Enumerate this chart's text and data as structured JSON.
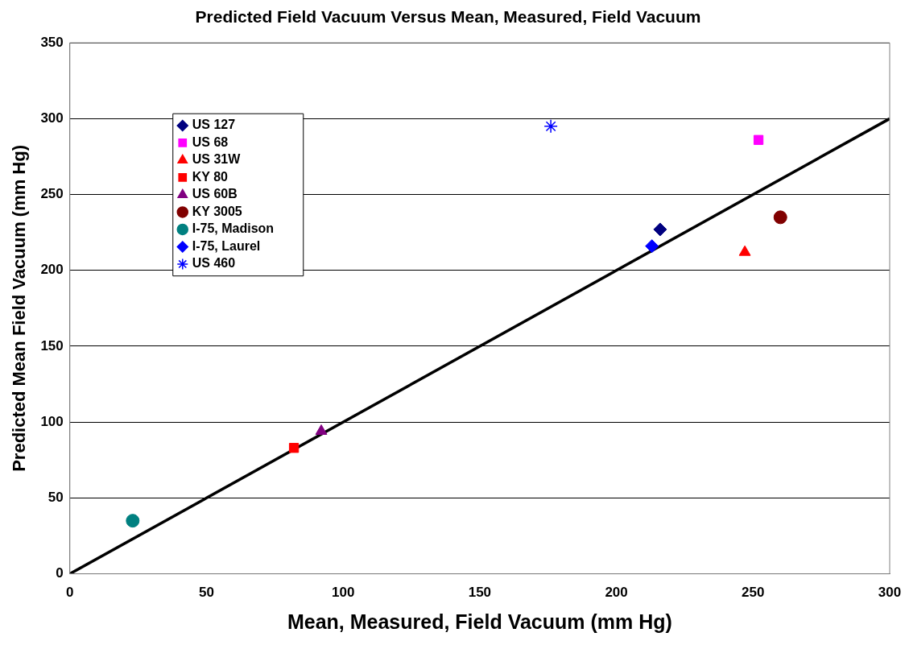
{
  "chart_data": {
    "type": "scatter",
    "title": "Predicted Field Vacuum Versus Mean, Measured, Field Vacuum",
    "xlabel": "Mean, Measured, Field Vacuum (mm Hg)",
    "ylabel": "Predicted Mean Field Vacuum (mm Hg)",
    "xlim": [
      0,
      300
    ],
    "xticks": [
      0,
      50,
      100,
      150,
      200,
      250,
      300
    ],
    "ylim": [
      0,
      350
    ],
    "yticks": [
      0,
      50,
      100,
      150,
      200,
      250,
      300,
      350
    ],
    "grid": "y",
    "legend": "top left",
    "series": [
      {
        "name": "US 127",
        "color": "#000080",
        "marker": "diamond",
        "x": [
          216
        ],
        "values": [
          227
        ]
      },
      {
        "name": "US 68",
        "color": "#ff00ff",
        "marker": "square",
        "x": [
          252
        ],
        "values": [
          286
        ]
      },
      {
        "name": "US 31W",
        "color": "#ff0000",
        "marker": "triangle",
        "x": [
          247
        ],
        "values": [
          212
        ]
      },
      {
        "name": "KY 80",
        "color": "#ff0000",
        "marker": "square",
        "x": [
          82
        ],
        "values": [
          83
        ]
      },
      {
        "name": "US 60B",
        "color": "#800080",
        "marker": "triangle",
        "x": [
          92
        ],
        "values": [
          94
        ]
      },
      {
        "name": "KY 3005",
        "color": "#800000",
        "marker": "circle",
        "x": [
          260
        ],
        "values": [
          235
        ]
      },
      {
        "name": "I-75, Madison",
        "color": "#008080",
        "marker": "circle",
        "x": [
          23
        ],
        "values": [
          35
        ]
      },
      {
        "name": "I-75, Laurel",
        "color": "#0000ff",
        "marker": "diamond",
        "x": [
          213
        ],
        "values": [
          216
        ]
      },
      {
        "name": "US 460",
        "color": "#0000ff",
        "marker": "cross",
        "x": [
          176
        ],
        "values": [
          295
        ]
      },
      {
        "type": "line",
        "color": "#000000",
        "line_style": "solid",
        "marker": "none",
        "x": [
          0,
          300
        ],
        "values": [
          0,
          300
        ]
      }
    ]
  }
}
